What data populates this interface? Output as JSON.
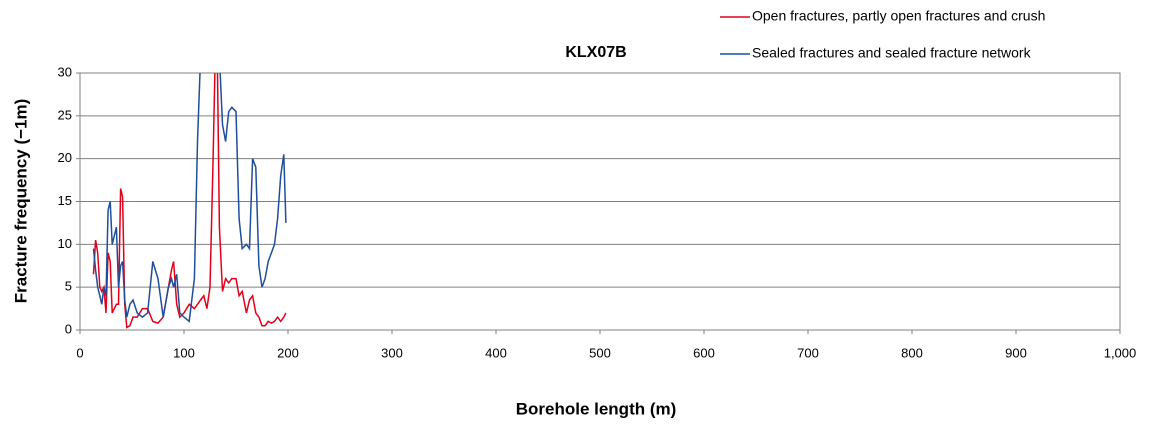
{
  "chart_data": {
    "type": "line",
    "title": "KLX07B",
    "x_label": "Borehole length (m)",
    "y_label": "Fracture frequency (−1m)",
    "x": [
      13,
      15,
      17,
      19,
      21,
      23,
      25,
      27,
      29,
      31,
      33,
      35,
      37,
      39,
      41,
      43,
      45,
      48,
      51,
      55,
      60,
      65,
      70,
      75,
      80,
      85,
      88,
      90,
      93,
      96,
      100,
      105,
      110,
      113,
      116,
      119,
      122,
      125,
      128,
      130,
      132,
      134,
      137,
      140,
      143,
      146,
      150,
      153,
      156,
      160,
      163,
      166,
      169,
      172,
      175,
      178,
      181,
      184,
      187,
      190,
      193,
      196,
      198
    ],
    "series": [
      {
        "name": "Open fractures, partly open fractures and crush",
        "color": "#e3001b",
        "values": [
          6.5,
          10.5,
          9,
          5,
          4.5,
          5,
          2,
          9,
          8,
          2,
          2.5,
          3,
          3,
          16.5,
          15.5,
          3,
          0.3,
          0.5,
          1.5,
          1.5,
          2.5,
          2.5,
          1,
          0.8,
          1.5,
          5,
          7,
          8,
          3,
          1.5,
          2,
          3,
          2.5,
          3,
          3.5,
          4,
          2.5,
          5,
          20,
          32,
          32,
          12,
          4.5,
          6,
          5.5,
          6,
          6,
          4,
          4.5,
          2,
          3.5,
          4,
          2,
          1.5,
          0.5,
          0.5,
          1,
          0.8,
          1,
          1.5,
          1,
          1.5,
          2
        ]
      },
      {
        "name": "Sealed fractures and sealed fracture network",
        "color": "#1f4e9a",
        "values": [
          9.5,
          7,
          5,
          4,
          3,
          5,
          4,
          14,
          15,
          10,
          11,
          12,
          5,
          7.5,
          8,
          3.5,
          1.5,
          3,
          3.5,
          2,
          1.5,
          2,
          8,
          6,
          1.5,
          5,
          6,
          5,
          6.5,
          2,
          1.5,
          1,
          6,
          22,
          32,
          32,
          32,
          32,
          32,
          32,
          32,
          32,
          24,
          22,
          25.5,
          26,
          25.5,
          13,
          9.5,
          10,
          9.5,
          20,
          19,
          7.5,
          5,
          6,
          8,
          9,
          10,
          13,
          18,
          20.5,
          12.5
        ]
      }
    ],
    "xlim": [
      0,
      1000
    ],
    "xticks": [
      0,
      100,
      200,
      300,
      400,
      500,
      600,
      700,
      800,
      900,
      {
        "value": 1000,
        "label": "1,000"
      }
    ],
    "ylim": [
      0,
      30
    ],
    "yticks": [
      0,
      5,
      10,
      15,
      20,
      25,
      30
    ],
    "grid": true,
    "legend": "top-right"
  }
}
